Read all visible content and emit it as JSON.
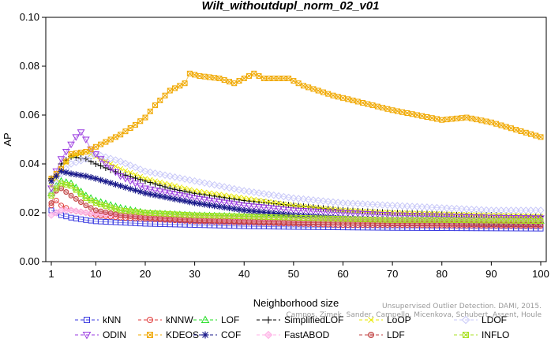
{
  "chart_data": {
    "type": "line",
    "title": "Wilt_withoutdupl_norm_02_v01",
    "xlabel": "Neighborhood size",
    "ylabel": "AP",
    "xlim": [
      0,
      101
    ],
    "ylim": [
      0,
      0.1
    ],
    "xticks": [
      "1",
      "10",
      "20",
      "30",
      "40",
      "50",
      "60",
      "70",
      "80",
      "90",
      "100"
    ],
    "xtick_values": [
      1,
      10,
      20,
      30,
      40,
      50,
      60,
      70,
      80,
      90,
      100
    ],
    "yticks": [
      "0.00",
      "0.02",
      "0.04",
      "0.06",
      "0.08",
      "0.10"
    ],
    "ytick_values": [
      0,
      0.02,
      0.04,
      0.06,
      0.08,
      0.1
    ],
    "grid": false,
    "legend_position": "bottom",
    "watermark": [
      "Unsupervised Outlier Detection. DAMI, 2015.",
      "Campos, Zimek, Sander, Campello, Micenkova, Schubert, Assent, Houle"
    ],
    "series": [
      {
        "name": "kNN",
        "marker": "square",
        "color": "#3a3ae0",
        "x": [
          1,
          2,
          3,
          5,
          8,
          10,
          15,
          20,
          30,
          40,
          50,
          60,
          70,
          80,
          90,
          100
        ],
        "y": [
          0.021,
          0.02,
          0.019,
          0.018,
          0.017,
          0.0165,
          0.016,
          0.0155,
          0.015,
          0.0145,
          0.0142,
          0.014,
          0.0138,
          0.0137,
          0.0136,
          0.0135
        ]
      },
      {
        "name": "kNNW",
        "marker": "circle",
        "color": "#e03a3a",
        "x": [
          1,
          2,
          3,
          5,
          8,
          10,
          15,
          20,
          30,
          40,
          50,
          60,
          70,
          80,
          90,
          100
        ],
        "y": [
          0.023,
          0.025,
          0.023,
          0.021,
          0.02,
          0.019,
          0.018,
          0.0175,
          0.0165,
          0.016,
          0.0155,
          0.015,
          0.015,
          0.0148,
          0.0147,
          0.0146
        ]
      },
      {
        "name": "LOF",
        "marker": "triangle",
        "color": "#22dd22",
        "x": [
          1,
          2,
          3,
          5,
          8,
          10,
          15,
          20,
          30,
          40,
          50,
          60,
          70,
          80,
          90,
          100
        ],
        "y": [
          0.028,
          0.031,
          0.033,
          0.032,
          0.027,
          0.025,
          0.022,
          0.02,
          0.019,
          0.0185,
          0.018,
          0.0175,
          0.017,
          0.017,
          0.0168,
          0.0167
        ]
      },
      {
        "name": "SimplifiedLOF",
        "marker": "plus",
        "color": "#000000",
        "x": [
          1,
          2,
          3,
          5,
          8,
          10,
          15,
          20,
          25,
          30,
          40,
          50,
          60,
          70,
          80,
          90,
          100
        ],
        "y": [
          0.034,
          0.035,
          0.04,
          0.043,
          0.042,
          0.04,
          0.036,
          0.033,
          0.03,
          0.028,
          0.025,
          0.023,
          0.021,
          0.02,
          0.0195,
          0.019,
          0.0185
        ]
      },
      {
        "name": "LoOP",
        "marker": "cross",
        "color": "#e8e800",
        "x": [
          1,
          2,
          3,
          5,
          8,
          10,
          15,
          20,
          30,
          40,
          50,
          60,
          70,
          80,
          90,
          100
        ],
        "y": [
          0.031,
          0.034,
          0.038,
          0.043,
          0.045,
          0.043,
          0.038,
          0.034,
          0.029,
          0.026,
          0.023,
          0.021,
          0.02,
          0.0195,
          0.019,
          0.0185
        ]
      },
      {
        "name": "LDOF",
        "marker": "diamond",
        "color": "#c8c8f8",
        "x": [
          1,
          2,
          3,
          5,
          8,
          10,
          15,
          20,
          30,
          40,
          50,
          60,
          70,
          80,
          90,
          100
        ],
        "y": [
          0.028,
          0.032,
          0.036,
          0.04,
          0.042,
          0.044,
          0.041,
          0.037,
          0.033,
          0.029,
          0.026,
          0.024,
          0.023,
          0.022,
          0.021,
          0.021
        ]
      },
      {
        "name": "ODIN",
        "marker": "triangle-down",
        "color": "#9a3ae0",
        "x": [
          1,
          2,
          3,
          5,
          6,
          7,
          8,
          9,
          10,
          12,
          15,
          20,
          30,
          40,
          50,
          60,
          70,
          80,
          90,
          100
        ],
        "y": [
          0.03,
          0.037,
          0.042,
          0.048,
          0.051,
          0.053,
          0.05,
          0.046,
          0.044,
          0.04,
          0.035,
          0.03,
          0.026,
          0.023,
          0.021,
          0.02,
          0.019,
          0.0185,
          0.018,
          0.0178
        ]
      },
      {
        "name": "KDEOS",
        "marker": "boxtimes",
        "color": "#f0a800",
        "x": [
          1,
          3,
          5,
          8,
          10,
          12,
          15,
          18,
          20,
          22,
          25,
          28,
          29,
          31,
          35,
          38,
          40,
          42,
          44,
          46,
          49,
          52,
          55,
          58,
          62,
          66,
          70,
          75,
          80,
          85,
          90,
          95,
          100
        ],
        "y": [
          0.034,
          0.038,
          0.044,
          0.045,
          0.047,
          0.049,
          0.052,
          0.056,
          0.059,
          0.064,
          0.07,
          0.073,
          0.077,
          0.076,
          0.075,
          0.073,
          0.075,
          0.077,
          0.075,
          0.075,
          0.075,
          0.072,
          0.07,
          0.068,
          0.066,
          0.064,
          0.062,
          0.06,
          0.058,
          0.059,
          0.057,
          0.054,
          0.051
        ]
      },
      {
        "name": "COF",
        "marker": "asterisk",
        "color": "#1a1a8a",
        "x": [
          1,
          2,
          3,
          5,
          8,
          10,
          15,
          20,
          30,
          40,
          50,
          60,
          70,
          80,
          90,
          100
        ],
        "y": [
          0.033,
          0.035,
          0.037,
          0.036,
          0.035,
          0.034,
          0.031,
          0.028,
          0.024,
          0.021,
          0.019,
          0.0178,
          0.017,
          0.0165,
          0.016,
          0.016
        ]
      },
      {
        "name": "FastABOD",
        "marker": "diamond-filled",
        "color": "#ffb0e6",
        "x": [
          1,
          2,
          3,
          5,
          8,
          10,
          15,
          20,
          30,
          40,
          50,
          60,
          70,
          80,
          90,
          100
        ],
        "y": [
          0.019,
          0.02,
          0.021,
          0.021,
          0.02,
          0.0195,
          0.019,
          0.0185,
          0.018,
          0.0175,
          0.017,
          0.017,
          0.0168,
          0.0166,
          0.0165,
          0.0164
        ]
      },
      {
        "name": "LDF",
        "marker": "circle-filled",
        "color": "#c04040",
        "x": [
          1,
          2,
          3,
          5,
          8,
          10,
          15,
          20,
          30,
          40,
          50,
          60,
          70,
          80,
          90,
          100
        ],
        "y": [
          0.024,
          0.029,
          0.03,
          0.027,
          0.023,
          0.021,
          0.019,
          0.018,
          0.017,
          0.0165,
          0.016,
          0.0158,
          0.0156,
          0.0154,
          0.0152,
          0.0151
        ]
      },
      {
        "name": "INFLO",
        "marker": "boxtimes",
        "color": "#a8e020",
        "x": [
          1,
          2,
          3,
          5,
          8,
          10,
          15,
          20,
          30,
          40,
          50,
          60,
          70,
          80,
          90,
          100
        ],
        "y": [
          0.027,
          0.03,
          0.032,
          0.031,
          0.026,
          0.024,
          0.021,
          0.02,
          0.019,
          0.0185,
          0.018,
          0.0175,
          0.017,
          0.017,
          0.0168,
          0.0166
        ]
      }
    ]
  }
}
